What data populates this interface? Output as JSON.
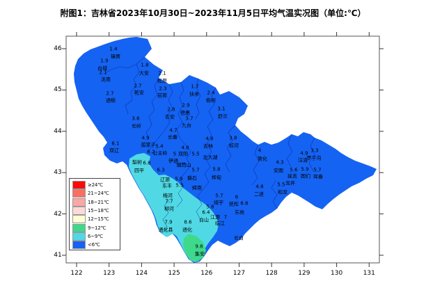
{
  "title": "附图1：吉林省2023年10月30日~2023年11月5日平均气温实况图（单位:℃）",
  "axes": {
    "x_tick_labels": [
      "122",
      "123",
      "124",
      "125",
      "126",
      "127",
      "128",
      "129",
      "130",
      "131"
    ],
    "y_tick_labels": [
      "46",
      "45",
      "44",
      "43",
      "42",
      "41"
    ]
  },
  "legend": {
    "items": [
      {
        "label": "≥24℃",
        "color": "#FA0A0A"
      },
      {
        "label": "21~24℃",
        "color": "#FB6E62"
      },
      {
        "label": "18~21℃",
        "color": "#FDA6A6"
      },
      {
        "label": "15~18℃",
        "color": "#FEDAD6"
      },
      {
        "label": "12~15℃",
        "color": "#FFFFD4"
      },
      {
        "label": "9~12℃",
        "color": "#3ED98B"
      },
      {
        "label": "6~9℃",
        "color": "#50D9E4"
      },
      {
        "label": "<6℃",
        "color": "#1563F2"
      }
    ]
  },
  "map": {
    "colors": {
      "below6": "#1563F2",
      "c6to9": "#50D9E4",
      "c9to12": "#3ED98B",
      "county_line": "rgba(5,15,130,0.6)"
    },
    "stations": [
      {
        "name": "镇赉",
        "value": "1.4",
        "nx": 166,
        "ny": 82,
        "vx": 163,
        "vy": 71
      },
      {
        "name": "白城",
        "value": "1.9",
        "nx": 147,
        "ny": 99,
        "vx": 150,
        "vy": 88
      },
      {
        "name": "洮南",
        "value": "2.1",
        "nx": 152,
        "ny": 115,
        "vx": 148,
        "vy": 105
      },
      {
        "name": "大安",
        "value": "1.8",
        "nx": 207,
        "ny": 106,
        "vx": 208,
        "vy": 94
      },
      {
        "name": "松原",
        "value": "2.1",
        "nx": 233,
        "ny": 117,
        "vx": 233,
        "vy": 106
      },
      {
        "name": "乾安",
        "value": "2.7",
        "nx": 200,
        "ny": 134,
        "vx": 198,
        "vy": 124
      },
      {
        "name": "前郭",
        "value": "2.3",
        "nx": 233,
        "ny": 138,
        "vx": 234,
        "vy": 128
      },
      {
        "name": "通榆",
        "value": "2.7",
        "nx": 159,
        "ny": 145,
        "vx": 158,
        "vy": 135
      },
      {
        "name": "扶余",
        "value": "1.7",
        "nx": 279,
        "ny": 136,
        "vx": 280,
        "vy": 125
      },
      {
        "name": "榆树",
        "value": "2.4",
        "nx": 303,
        "ny": 145,
        "vx": 303,
        "vy": 134
      },
      {
        "name": "德惠",
        "value": "2.9",
        "nx": 266,
        "ny": 163,
        "vx": 267,
        "vy": 152
      },
      {
        "name": "农安",
        "value": "2.8",
        "nx": 244,
        "ny": 169,
        "vx": 246,
        "vy": 158
      },
      {
        "name": "九台",
        "value": "3.7",
        "nx": 268,
        "ny": 181,
        "vx": 272,
        "vy": 171
      },
      {
        "name": "舒兰",
        "value": "3.1",
        "nx": 320,
        "ny": 168,
        "vx": 318,
        "vy": 157
      },
      {
        "name": "长岭",
        "value": "3.6",
        "nx": 196,
        "ny": 182,
        "vx": 195,
        "vy": 171
      },
      {
        "name": "长春",
        "value": "4.7",
        "nx": 248,
        "ny": 198,
        "vx": 249,
        "vy": 188
      },
      {
        "name": "孤家子",
        "value": "4.9",
        "nx": 213,
        "ny": 209,
        "vx": 209,
        "vy": 199
      },
      {
        "name": "双辽",
        "value": "6.1",
        "nx": 164,
        "ny": 217,
        "vx": 166,
        "vy": 207
      },
      {
        "name": "公主岭",
        "value": "5.4",
        "nx": 230,
        "ny": 221,
        "vx": 229,
        "vy": 211
      },
      {
        "name": "",
        "value": "6.2",
        "nx": 0,
        "ny": 0,
        "vx": 217,
        "vy": 219
      },
      {
        "name": "梨树",
        "value": "6.8",
        "nx": 197,
        "ny": 234,
        "vx": 211,
        "vy": 235
      },
      {
        "name": "四平",
        "value": "",
        "nx": 200,
        "ny": 246,
        "vx": 0,
        "vy": 0
      },
      {
        "name": "伊通",
        "value": "5",
        "nx": 249,
        "ny": 232,
        "vx": 251,
        "vy": 222
      },
      {
        "name": "双阳",
        "value": "4.8",
        "nx": 263,
        "ny": 222,
        "vx": 266,
        "vy": 213
      },
      {
        "name": "吉林",
        "value": "4.8",
        "nx": 299,
        "ny": 211,
        "vx": 301,
        "vy": 200
      },
      {
        "name": "北大湖",
        "value": "5.5",
        "nx": 302,
        "ny": 227,
        "vx": 281,
        "vy": 222
      },
      {
        "name": "烟筒山",
        "value": "",
        "nx": 264,
        "ny": 238,
        "vx": 0,
        "vy": 0
      },
      {
        "name": "",
        "value": "5.7",
        "nx": 0,
        "ny": 0,
        "vx": 281,
        "vy": 245
      },
      {
        "name": "磐石",
        "value": "",
        "nx": 276,
        "ny": 257,
        "vx": 0,
        "vy": 0
      },
      {
        "name": "桦甸",
        "value": "5.8",
        "nx": 311,
        "ny": 256,
        "vx": 311,
        "vy": 244
      },
      {
        "name": "蛟河",
        "value": "3.8",
        "nx": 336,
        "ny": 210,
        "vx": 335,
        "vy": 199
      },
      {
        "name": "辽源",
        "value": "6.3",
        "nx": 237,
        "ny": 259,
        "vx": 231,
        "vy": 245
      },
      {
        "name": "",
        "value": "5.9",
        "nx": 0,
        "ny": 0,
        "vx": 257,
        "vy": 258
      },
      {
        "name": "东丰",
        "value": "5.5",
        "nx": 240,
        "ny": 268,
        "vx": 258,
        "vy": 267
      },
      {
        "name": "辉南",
        "value": "",
        "nx": 283,
        "ny": 271,
        "vx": 0,
        "vy": 0
      },
      {
        "name": "梅河",
        "value": "7.7",
        "nx": 241,
        "ny": 282,
        "vx": 243,
        "vy": 290
      },
      {
        "name": "柳河",
        "value": "",
        "nx": 243,
        "ny": 301,
        "vx": 0,
        "vy": 0
      },
      {
        "name": "通化县",
        "value": "7.9",
        "nx": 238,
        "ny": 331,
        "vx": 242,
        "vy": 320
      },
      {
        "name": "通化",
        "value": "8.6",
        "nx": 269,
        "ny": 331,
        "vx": 270,
        "vy": 320
      },
      {
        "name": "集安",
        "value": "9.8",
        "nx": 287,
        "ny": 366,
        "vx": 286,
        "vy": 355
      },
      {
        "name": "白山",
        "value": "6.4",
        "nx": 293,
        "ny": 317,
        "vx": 296,
        "vy": 306
      },
      {
        "name": "江源",
        "value": "7",
        "nx": 309,
        "ny": 313,
        "vx": 324,
        "vy": 313
      },
      {
        "name": "临江",
        "value": "",
        "nx": 316,
        "ny": 322,
        "vx": 0,
        "vy": 0
      },
      {
        "name": "靖宇",
        "value": "5.7",
        "nx": 314,
        "ny": 292,
        "vx": 315,
        "vy": 282
      },
      {
        "name": "",
        "value": "5.8",
        "nx": 0,
        "ny": 0,
        "vx": 302,
        "vy": 298
      },
      {
        "name": "抚松",
        "value": "6",
        "nx": 336,
        "ny": 294,
        "vx": 340,
        "vy": 284
      },
      {
        "name": "东岗",
        "value": "6.8",
        "nx": 344,
        "ny": 306,
        "vx": 351,
        "vy": 293
      },
      {
        "name": "长白",
        "value": "",
        "nx": 343,
        "ny": 343,
        "vx": 0,
        "vy": 0
      },
      {
        "name": "敦化",
        "value": "4",
        "nx": 377,
        "ny": 229,
        "vx": 373,
        "vy": 217
      },
      {
        "name": "二道",
        "value": "4.8",
        "nx": 372,
        "ny": 280,
        "vx": 373,
        "vy": 269
      },
      {
        "name": "安图",
        "value": "4.3",
        "nx": 400,
        "ny": 246,
        "vx": 402,
        "vy": 234
      },
      {
        "name": "汪清",
        "value": "4.9",
        "nx": 435,
        "ny": 231,
        "vx": 437,
        "vy": 221
      },
      {
        "name": "罗子沟",
        "value": "3.3",
        "nx": 451,
        "ny": 228,
        "vx": 452,
        "vy": 217
      },
      {
        "name": "延吉",
        "value": "5.6",
        "nx": 420,
        "ny": 254,
        "vx": 422,
        "vy": 245
      },
      {
        "name": "龙井",
        "value": "",
        "nx": 417,
        "ny": 264,
        "vx": 0,
        "vy": 0
      },
      {
        "name": "和龙",
        "value": "5.5",
        "nx": 406,
        "ny": 277,
        "vx": 404,
        "vy": 266
      },
      {
        "name": "图们",
        "value": "5.9",
        "nx": 439,
        "ny": 254,
        "vx": 438,
        "vy": 244
      },
      {
        "name": "珲春",
        "value": "5.7",
        "nx": 457,
        "ny": 255,
        "vx": 456,
        "vy": 245
      }
    ]
  }
}
